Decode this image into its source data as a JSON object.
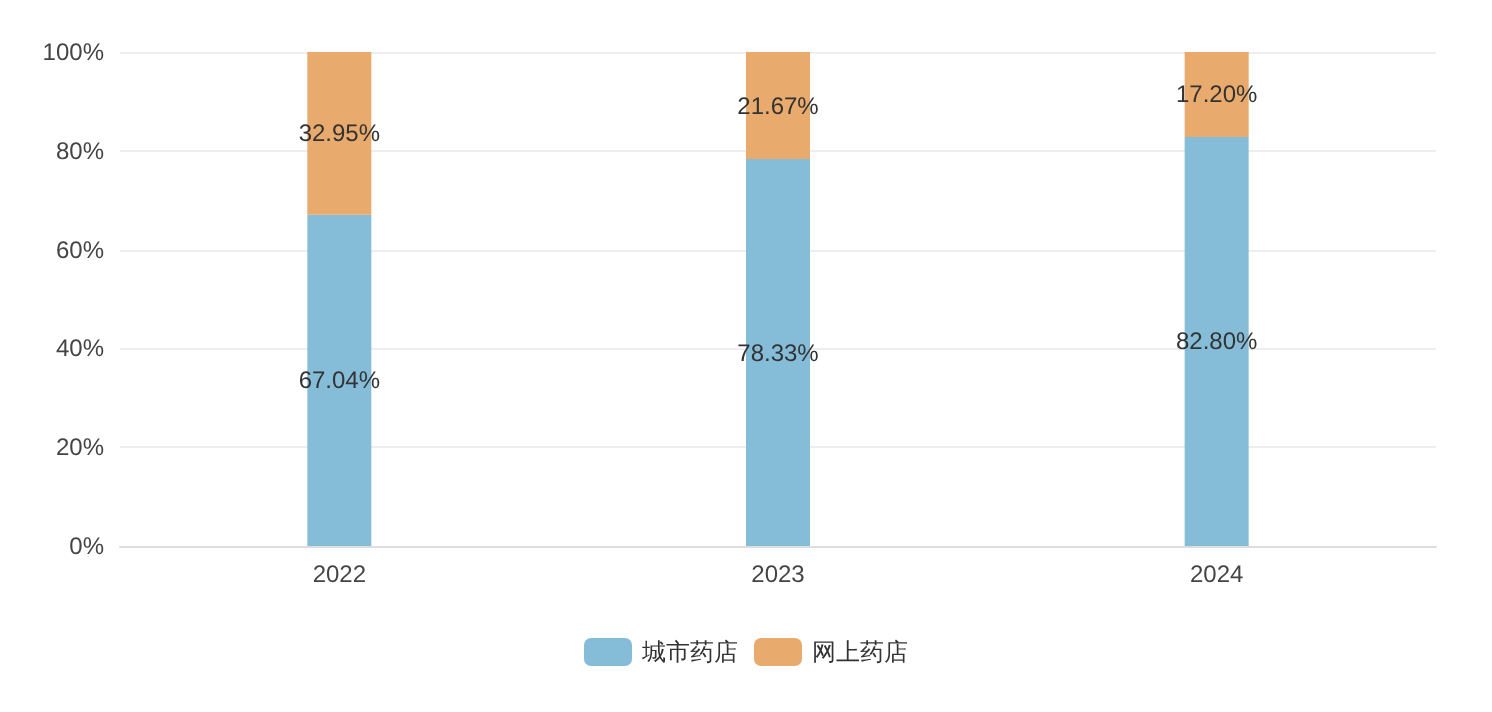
{
  "chart_data": {
    "type": "bar",
    "stacked": true,
    "categories": [
      "2022",
      "2023",
      "2024"
    ],
    "series": [
      {
        "name": "城市药店",
        "color": "#85bdd9",
        "values": [
          67.04,
          78.33,
          82.8
        ],
        "value_labels": [
          "67.04%",
          "78.33%",
          "82.80%"
        ]
      },
      {
        "name": "网上药店",
        "color": "#e9aa6e",
        "values": [
          32.95,
          21.67,
          17.2
        ],
        "value_labels": [
          "32.95%",
          "21.67%",
          "17.20%"
        ]
      }
    ],
    "ylim": [
      0,
      100
    ],
    "yticks": [
      {
        "value": 0,
        "label": "0%"
      },
      {
        "value": 20,
        "label": "20%"
      },
      {
        "value": 40,
        "label": "40%"
      },
      {
        "value": 60,
        "label": "60%"
      },
      {
        "value": 80,
        "label": "80%"
      },
      {
        "value": 100,
        "label": "100%"
      }
    ],
    "grid": "y",
    "legend": "bottom"
  }
}
